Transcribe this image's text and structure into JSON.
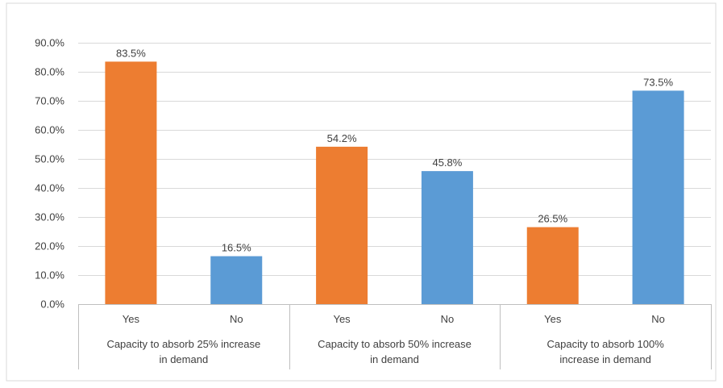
{
  "chart_data": {
    "type": "bar",
    "title": "",
    "xlabel": "",
    "ylabel": "",
    "ylim": [
      0,
      90
    ],
    "y_ticks": [
      "0.0%",
      "10.0%",
      "20.0%",
      "30.0%",
      "40.0%",
      "50.0%",
      "60.0%",
      "70.0%",
      "80.0%",
      "90.0%"
    ],
    "grid": true,
    "legend": "none",
    "bars": [
      {
        "group": 0,
        "category": "Yes",
        "value": 83.5,
        "label": "83.5%",
        "color": "#ED7D31"
      },
      {
        "group": 0,
        "category": "No",
        "value": 16.5,
        "label": "16.5%",
        "color": "#5B9BD5"
      },
      {
        "group": 1,
        "category": "Yes",
        "value": 54.2,
        "label": "54.2%",
        "color": "#ED7D31"
      },
      {
        "group": 1,
        "category": "No",
        "value": 45.8,
        "label": "45.8%",
        "color": "#5B9BD5"
      },
      {
        "group": 2,
        "category": "Yes",
        "value": 26.5,
        "label": "26.5%",
        "color": "#ED7D31"
      },
      {
        "group": 2,
        "category": "No",
        "value": 73.5,
        "label": "73.5%",
        "color": "#5B9BD5"
      }
    ],
    "groups": [
      {
        "lines": [
          "Capacity to absorb 25% increase",
          "in demand"
        ]
      },
      {
        "lines": [
          "Capacity to absorb 50% increase",
          "in demand"
        ]
      },
      {
        "lines": [
          "Capacity to absorb 100%",
          "increase in demand"
        ]
      }
    ],
    "colors": {
      "yes": "#ED7D31",
      "no": "#5B9BD5",
      "grid": "#D9D9D9",
      "axis": "#BFBFBF",
      "text": "#404040"
    }
  }
}
